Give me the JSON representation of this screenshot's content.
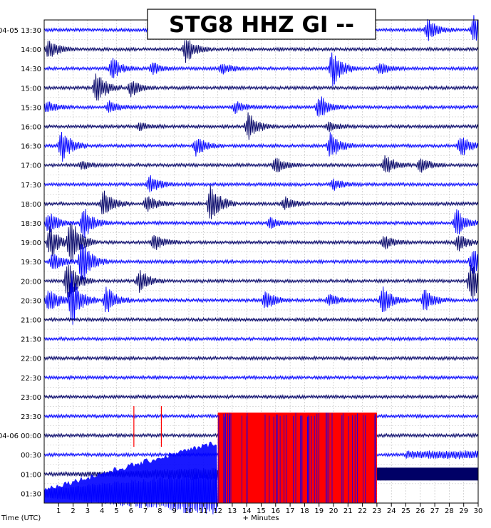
{
  "chart_data": {
    "type": "helicorder",
    "title": "STG8 HHZ GI --",
    "xlabel": "+ Minutes",
    "ylabel": "Time (UTC)",
    "x_ticks": [
      "1",
      "2",
      "3",
      "4",
      "5",
      "6",
      "7",
      "8",
      "9",
      "10",
      "11",
      "12",
      "13",
      "14",
      "15",
      "16",
      "17",
      "18",
      "19",
      "20",
      "21",
      "22",
      "23",
      "24",
      "25",
      "26",
      "27",
      "28",
      "29",
      "30"
    ],
    "xlim": [
      0,
      30
    ],
    "grid": true,
    "trace_colors": [
      "#0000ff",
      "#000066"
    ],
    "saturation_color": "#ff0000",
    "row_labels": [
      "04-05 13:30",
      "14:00",
      "14:30",
      "15:00",
      "15:30",
      "16:00",
      "16:30",
      "17:00",
      "17:30",
      "18:00",
      "18:30",
      "19:00",
      "19:30",
      "20:00",
      "20:30",
      "21:00",
      "21:30",
      "22:00",
      "22:30",
      "23:00",
      "23:30",
      "04-06 00:00",
      "00:30",
      "01:00",
      "01:30"
    ],
    "events": [
      {
        "row": 0,
        "minute": 26.5,
        "amp": 0.8
      },
      {
        "row": 0,
        "minute": 29.7,
        "amp": 1.0
      },
      {
        "row": 1,
        "minute": 0.3,
        "amp": 0.7
      },
      {
        "row": 1,
        "minute": 9.8,
        "amp": 1.0
      },
      {
        "row": 2,
        "minute": 4.7,
        "amp": 0.8
      },
      {
        "row": 2,
        "minute": 7.5,
        "amp": 0.4
      },
      {
        "row": 2,
        "minute": 12.3,
        "amp": 0.4
      },
      {
        "row": 2,
        "minute": 19.9,
        "amp": 1.3
      },
      {
        "row": 2,
        "minute": 23.2,
        "amp": 0.4
      },
      {
        "row": 3,
        "minute": 3.6,
        "amp": 1.2
      },
      {
        "row": 3,
        "minute": 6.0,
        "amp": 0.6
      },
      {
        "row": 4,
        "minute": 0.2,
        "amp": 0.4
      },
      {
        "row": 4,
        "minute": 4.5,
        "amp": 0.4
      },
      {
        "row": 4,
        "minute": 13.2,
        "amp": 0.4
      },
      {
        "row": 4,
        "minute": 19.0,
        "amp": 0.9
      },
      {
        "row": 5,
        "minute": 14.1,
        "amp": 1.0
      },
      {
        "row": 5,
        "minute": 6.6,
        "amp": 0.3
      },
      {
        "row": 5,
        "minute": 19.7,
        "amp": 0.3
      },
      {
        "row": 6,
        "minute": 1.2,
        "amp": 1.2
      },
      {
        "row": 6,
        "minute": 10.5,
        "amp": 0.7
      },
      {
        "row": 6,
        "minute": 19.8,
        "amp": 1.0
      },
      {
        "row": 6,
        "minute": 28.8,
        "amp": 0.8
      },
      {
        "row": 7,
        "minute": 16.0,
        "amp": 0.6
      },
      {
        "row": 7,
        "minute": 2.6,
        "amp": 0.3
      },
      {
        "row": 7,
        "minute": 23.6,
        "amp": 0.7
      },
      {
        "row": 7,
        "minute": 26.0,
        "amp": 0.5
      },
      {
        "row": 8,
        "minute": 7.3,
        "amp": 0.7
      },
      {
        "row": 8,
        "minute": 20.0,
        "amp": 0.4
      },
      {
        "row": 9,
        "minute": 4.1,
        "amp": 1.0
      },
      {
        "row": 9,
        "minute": 7.1,
        "amp": 0.6
      },
      {
        "row": 9,
        "minute": 11.5,
        "amp": 1.4
      },
      {
        "row": 9,
        "minute": 16.6,
        "amp": 0.5
      },
      {
        "row": 10,
        "minute": 0.3,
        "amp": 0.8
      },
      {
        "row": 10,
        "minute": 2.7,
        "amp": 1.2
      },
      {
        "row": 10,
        "minute": 15.6,
        "amp": 0.4
      },
      {
        "row": 10,
        "minute": 28.5,
        "amp": 1.0
      },
      {
        "row": 11,
        "minute": 0.4,
        "amp": 1.2
      },
      {
        "row": 11,
        "minute": 1.8,
        "amp": 1.8
      },
      {
        "row": 11,
        "minute": 7.6,
        "amp": 0.6
      },
      {
        "row": 11,
        "minute": 23.5,
        "amp": 0.5
      },
      {
        "row": 11,
        "minute": 28.6,
        "amp": 0.6
      },
      {
        "row": 12,
        "minute": 2.6,
        "amp": 1.6
      },
      {
        "row": 12,
        "minute": 0.6,
        "amp": 0.7
      },
      {
        "row": 12,
        "minute": 29.6,
        "amp": 1.0
      },
      {
        "row": 13,
        "minute": 1.6,
        "amp": 1.6
      },
      {
        "row": 13,
        "minute": 6.6,
        "amp": 0.8
      },
      {
        "row": 13,
        "minute": 29.5,
        "amp": 1.5
      },
      {
        "row": 14,
        "minute": 0.3,
        "amp": 1.0
      },
      {
        "row": 14,
        "minute": 1.9,
        "amp": 1.8
      },
      {
        "row": 14,
        "minute": 4.3,
        "amp": 1.0
      },
      {
        "row": 14,
        "minute": 15.3,
        "amp": 0.7
      },
      {
        "row": 14,
        "minute": 19.7,
        "amp": 0.5
      },
      {
        "row": 14,
        "minute": 23.4,
        "amp": 1.0
      },
      {
        "row": 14,
        "minute": 26.3,
        "amp": 0.8
      }
    ]
  }
}
